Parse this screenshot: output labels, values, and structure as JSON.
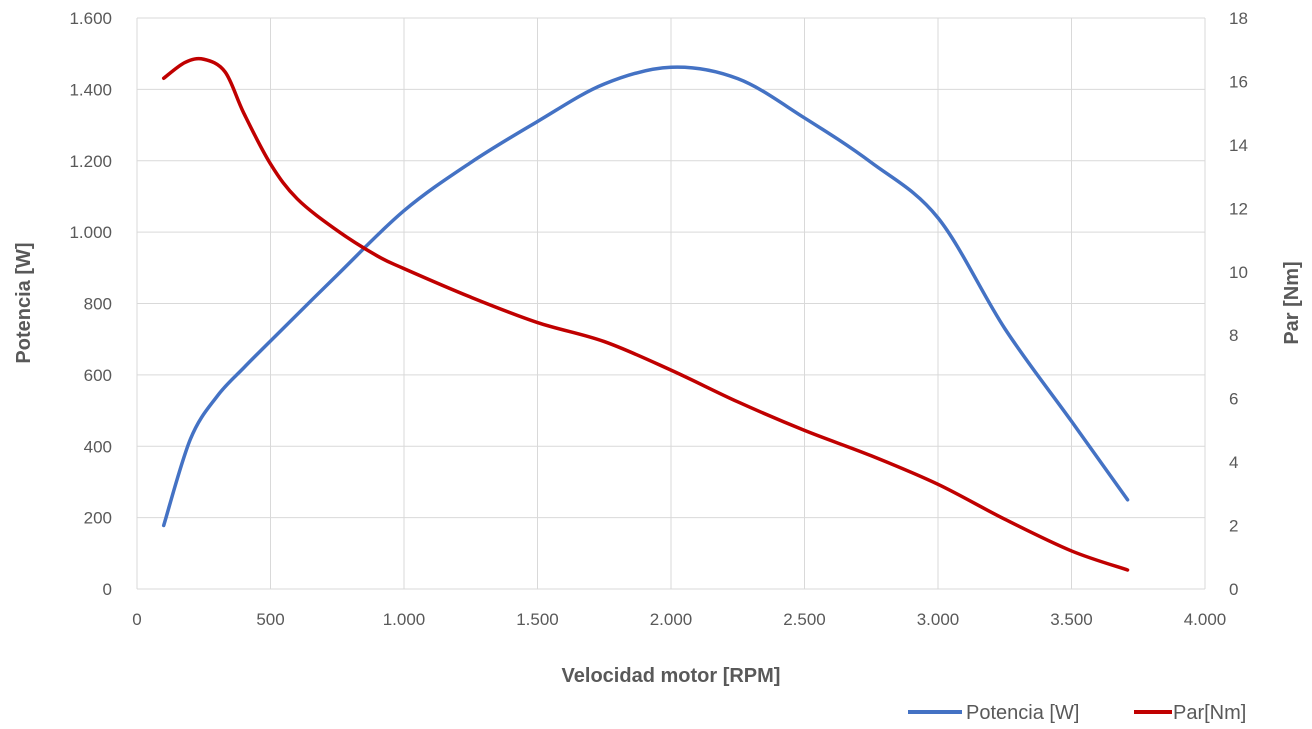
{
  "chart_data": {
    "type": "line",
    "title": "",
    "xlabel": "Velocidad motor [RPM]",
    "ylabel_left": "Potencia [W]",
    "ylabel_right": "Par [Nm]",
    "xlim": [
      0,
      4000
    ],
    "ylim_left": [
      0,
      1600
    ],
    "ylim_right": [
      0,
      18
    ],
    "x_ticks": [
      0,
      500,
      1000,
      1500,
      2000,
      2500,
      3000,
      3500,
      4000
    ],
    "x_tick_labels": [
      "0",
      "500",
      "1.000",
      "1.500",
      "2.000",
      "2.500",
      "3.000",
      "3.500",
      "4.000"
    ],
    "y_left_ticks": [
      0,
      200,
      400,
      600,
      800,
      1000,
      1200,
      1400,
      1600
    ],
    "y_left_tick_labels": [
      "0",
      "200",
      "400",
      "600",
      "800",
      "1.000",
      "1.200",
      "1.400",
      "1.600"
    ],
    "y_right_ticks": [
      0,
      2,
      4,
      6,
      8,
      10,
      12,
      14,
      16,
      18
    ],
    "y_right_tick_labels": [
      "0",
      "2",
      "4",
      "6",
      "8",
      "10",
      "12",
      "14",
      "16",
      "18"
    ],
    "grid": true,
    "legend_position": "bottom-right",
    "series": [
      {
        "name": "Potencia [W]",
        "axis": "left",
        "color": "#4472C4",
        "x": [
          100,
          200,
          300,
          400,
          500,
          750,
          1000,
          1250,
          1500,
          1750,
          2000,
          2250,
          2500,
          2750,
          3000,
          3250,
          3500,
          3710
        ],
        "y": [
          178,
          420,
          540,
          620,
          695,
          880,
          1060,
          1195,
          1310,
          1415,
          1462,
          1430,
          1320,
          1195,
          1040,
          730,
          470,
          250
        ]
      },
      {
        "name": "Par[Nm]",
        "axis": "right",
        "color": "#C00000",
        "x": [
          100,
          180,
          250,
          330,
          400,
          500,
          600,
          750,
          900,
          1000,
          1250,
          1500,
          1750,
          2000,
          2250,
          2500,
          2750,
          3000,
          3250,
          3500,
          3710
        ],
        "y": [
          16.1,
          16.6,
          16.7,
          16.3,
          15.0,
          13.4,
          12.3,
          11.3,
          10.5,
          10.1,
          9.2,
          8.4,
          7.8,
          6.9,
          5.9,
          5.0,
          4.2,
          3.3,
          2.2,
          1.2,
          0.6
        ]
      }
    ]
  }
}
